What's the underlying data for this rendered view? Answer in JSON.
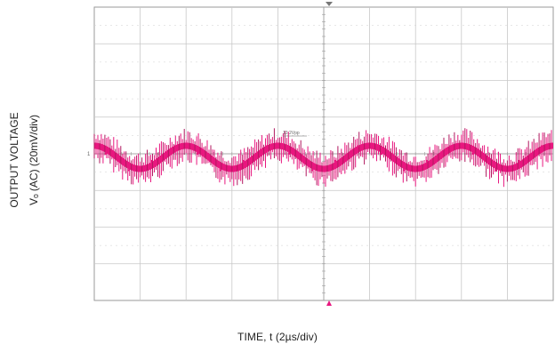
{
  "chart_data": {
    "type": "line",
    "title": "",
    "xlabel": "TIME, t (2µs/div)",
    "ylabel_line1": "OUTPUT VOLTAGE",
    "ylabel_line2": "Vₒ (AC) (20mV/div)",
    "x_divisions": 10,
    "y_divisions": 8,
    "x_unit_per_div": "2µs",
    "y_unit_per_div": "20mV",
    "grid": true,
    "series": [
      {
        "waveform": "output ripple",
        "color": "#e8177f",
        "period_us": 4.0,
        "ripple_amplitude_mV": 7,
        "spike_noise_mV": 10,
        "x_us": [
          0,
          1,
          2,
          3,
          4,
          5,
          6,
          7,
          8,
          9,
          10,
          11,
          12,
          13,
          14,
          15,
          16,
          17,
          18,
          19
        ],
        "y_mV": [
          2,
          -7,
          -2,
          6,
          2,
          -7,
          -2,
          6,
          2,
          -7,
          -2,
          6,
          2,
          -7,
          -2,
          6,
          2,
          -7,
          -2,
          6
        ]
      }
    ],
    "channel_marker": "1",
    "measurement_label": "13.2Vpp"
  }
}
